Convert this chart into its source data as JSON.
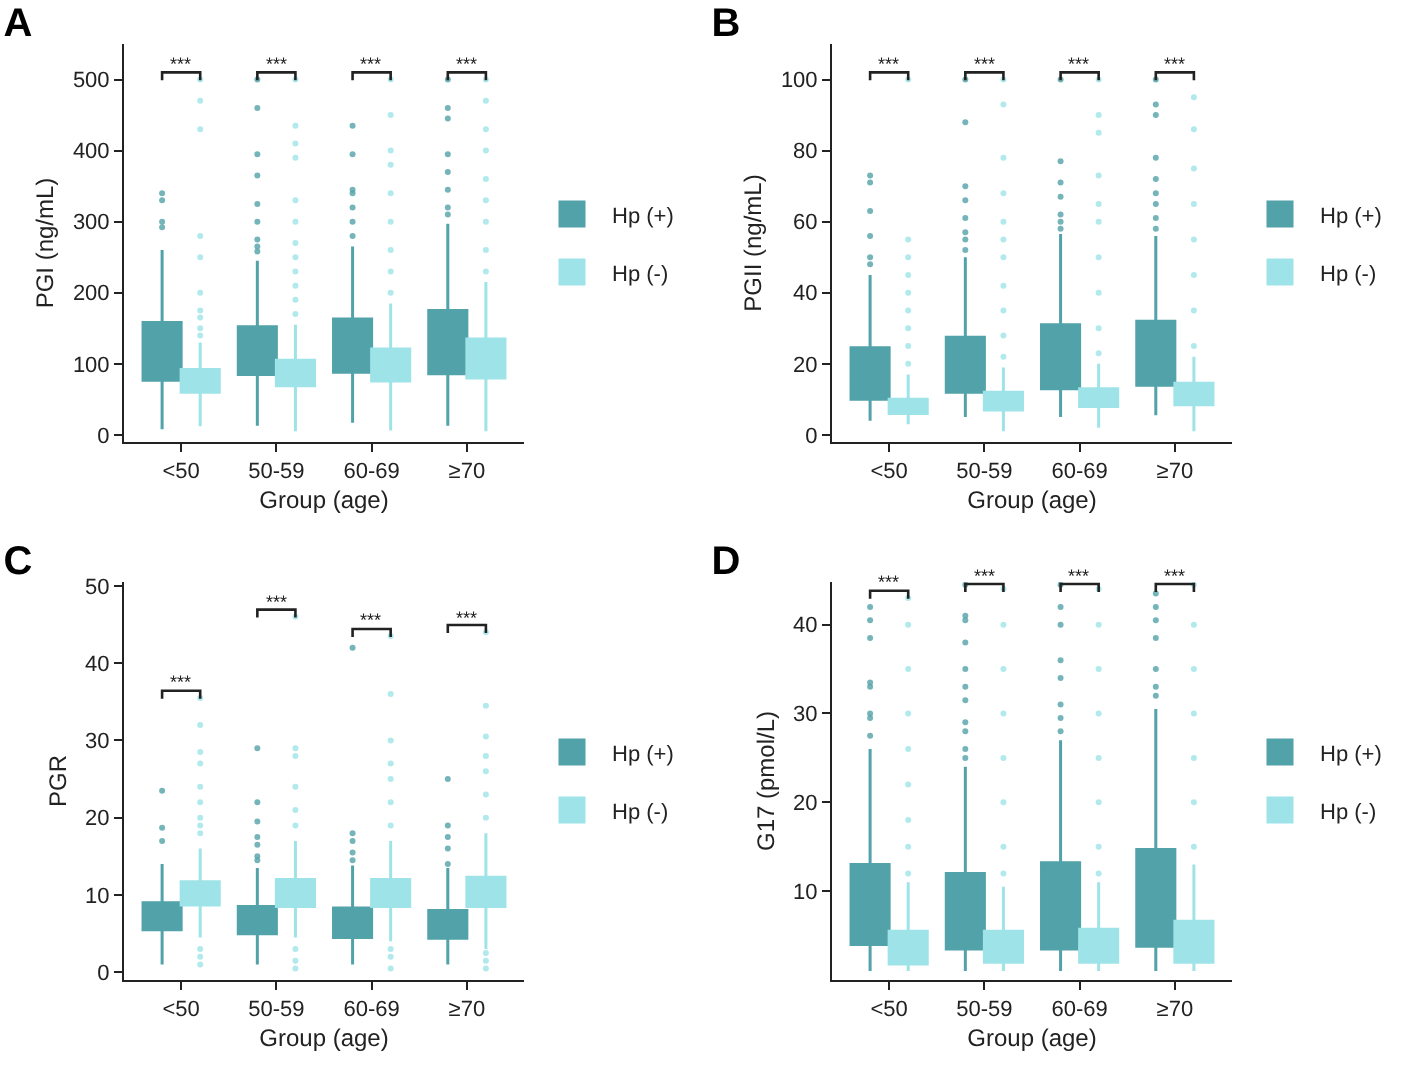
{
  "chart_data": [
    {
      "type": "box",
      "title": "A",
      "xlabel": "Group (age)",
      "ylabel": "PGI (ng/mL)",
      "categories": [
        "<50",
        "50-59",
        "60-69",
        "≥70"
      ],
      "ylim": [
        -10,
        550
      ],
      "yticks": [
        0,
        100,
        200,
        300,
        400,
        500
      ],
      "legend": "right",
      "grid": false,
      "series": [
        {
          "name": "Hp (+)",
          "color": "#52a2a9",
          "boxes": [
            {
              "low": 8,
              "q1": 77,
              "median": 105,
              "q3": 158,
              "high": 260,
              "outliers": [
                292,
                300,
                330,
                340
              ]
            },
            {
              "low": 13,
              "q1": 85,
              "median": 112,
              "q3": 152,
              "high": 245,
              "outliers": [
                258,
                265,
                275,
                300,
                325,
                365,
                395,
                460,
                500
              ]
            },
            {
              "low": 17,
              "q1": 88,
              "median": 118,
              "q3": 163,
              "high": 265,
              "outliers": [
                280,
                300,
                320,
                340,
                345,
                395,
                435
              ]
            },
            {
              "low": 13,
              "q1": 86,
              "median": 122,
              "q3": 175,
              "high": 297,
              "outliers": [
                310,
                320,
                345,
                370,
                395,
                445,
                460,
                500
              ]
            }
          ]
        },
        {
          "name": "Hp (-)",
          "color": "#9ee3e8",
          "boxes": [
            {
              "low": 12,
              "q1": 60,
              "median": 73,
              "q3": 92,
              "high": 130,
              "outliers": [
                140,
                150,
                165,
                175,
                200,
                250,
                280,
                430,
                470,
                500
              ]
            },
            {
              "low": 5,
              "q1": 69,
              "median": 84,
              "q3": 105,
              "high": 155,
              "outliers": [
                170,
                190,
                210,
                230,
                250,
                270,
                300,
                330,
                390,
                410,
                435,
                500
              ]
            },
            {
              "low": 6,
              "q1": 76,
              "median": 95,
              "q3": 121,
              "high": 185,
              "outliers": [
                200,
                230,
                260,
                300,
                340,
                380,
                400,
                450,
                500
              ]
            },
            {
              "low": 5,
              "q1": 80,
              "median": 102,
              "q3": 135,
              "high": 215,
              "outliers": [
                230,
                260,
                300,
                330,
                360,
                400,
                430,
                470,
                500
              ]
            }
          ]
        }
      ],
      "annotations": [
        "***",
        "***",
        "***",
        "***"
      ]
    },
    {
      "type": "box",
      "title": "B",
      "xlabel": "Group (age)",
      "ylabel": "PGII (ng/mL)",
      "categories": [
        "<50",
        "50-59",
        "60-69",
        "≥70"
      ],
      "ylim": [
        -2,
        110
      ],
      "yticks": [
        0,
        20,
        40,
        60,
        80,
        100
      ],
      "legend": "right",
      "grid": false,
      "series": [
        {
          "name": "Hp (+)",
          "color": "#52a2a9",
          "boxes": [
            {
              "low": 4,
              "q1": 10,
              "median": 15,
              "q3": 24.5,
              "high": 45,
              "outliers": [
                48,
                50,
                56,
                63,
                71,
                73
              ]
            },
            {
              "low": 5,
              "q1": 12,
              "median": 17,
              "q3": 27.5,
              "high": 50,
              "outliers": [
                52,
                55,
                57,
                61,
                66,
                70,
                88,
                100
              ]
            },
            {
              "low": 5,
              "q1": 13,
              "median": 19,
              "q3": 31,
              "high": 56.5,
              "outliers": [
                58,
                60,
                62,
                67,
                71,
                77,
                100
              ]
            },
            {
              "low": 5.5,
              "q1": 14,
              "median": 20,
              "q3": 32,
              "high": 56,
              "outliers": [
                58,
                61,
                65,
                68,
                72,
                78,
                90,
                93,
                100
              ]
            }
          ]
        },
        {
          "name": "Hp (-)",
          "color": "#9ee3e8",
          "boxes": [
            {
              "low": 3,
              "q1": 6,
              "median": 7.5,
              "q3": 10,
              "high": 17,
              "outliers": [
                20,
                25,
                30,
                35,
                40,
                45,
                50,
                55,
                100
              ]
            },
            {
              "low": 1,
              "q1": 7,
              "median": 9,
              "q3": 12,
              "high": 19,
              "outliers": [
                22,
                28,
                35,
                42,
                50,
                55,
                60,
                68,
                78,
                93,
                100
              ]
            },
            {
              "low": 2,
              "q1": 8,
              "median": 10,
              "q3": 13,
              "high": 20,
              "outliers": [
                23,
                30,
                40,
                50,
                60,
                65,
                73,
                85,
                90,
                100
              ]
            },
            {
              "low": 1,
              "q1": 8.5,
              "median": 11,
              "q3": 14.5,
              "high": 22,
              "outliers": [
                25,
                35,
                45,
                55,
                65,
                75,
                86,
                95
              ]
            }
          ]
        }
      ],
      "annotations": [
        "***",
        "***",
        "***",
        "***"
      ]
    },
    {
      "type": "box",
      "title": "C",
      "xlabel": "Group (age)",
      "ylabel": "PGR",
      "categories": [
        "<50",
        "50-59",
        "60-69",
        "≥70"
      ],
      "ylim": [
        -1,
        50.5
      ],
      "yticks": [
        0,
        10,
        20,
        30,
        40,
        50
      ],
      "legend": "right",
      "grid": false,
      "series": [
        {
          "name": "Hp (+)",
          "color": "#52a2a9",
          "boxes": [
            {
              "low": 1,
              "q1": 5.5,
              "median": 7,
              "q3": 9,
              "high": 14,
              "outliers": [
                17,
                18.7,
                23.5
              ]
            },
            {
              "low": 1,
              "q1": 5,
              "median": 6.5,
              "q3": 8.5,
              "high": 13.5,
              "outliers": [
                14.5,
                15,
                16.5,
                17.5,
                19.5,
                22,
                29
              ]
            },
            {
              "low": 1,
              "q1": 4.5,
              "median": 6.2,
              "q3": 8.3,
              "high": 13.8,
              "outliers": [
                14.5,
                15.5,
                17,
                18,
                42
              ]
            },
            {
              "low": 1,
              "q1": 4.4,
              "median": 6,
              "q3": 8,
              "high": 13.5,
              "outliers": [
                14,
                16,
                17.5,
                19,
                25
              ]
            }
          ]
        },
        {
          "name": "Hp (-)",
          "color": "#9ee3e8",
          "boxes": [
            {
              "low": 4.5,
              "q1": 8.7,
              "median": 10,
              "q3": 11.7,
              "high": 16,
              "outliers": [
                1,
                2,
                3,
                18,
                19,
                20,
                22,
                24,
                27,
                28.5,
                32,
                35.5
              ]
            },
            {
              "low": 4.5,
              "q1": 8.5,
              "median": 10,
              "q3": 12,
              "high": 17,
              "outliers": [
                0.5,
                1.5,
                3,
                19,
                21,
                24,
                28,
                29,
                46
              ]
            },
            {
              "low": 4,
              "q1": 8.5,
              "median": 10,
              "q3": 12,
              "high": 17,
              "outliers": [
                0.5,
                2,
                3,
                19,
                22,
                25,
                27,
                30,
                36,
                43.5
              ]
            },
            {
              "low": 3,
              "q1": 8.5,
              "median": 10.2,
              "q3": 12.3,
              "high": 18,
              "outliers": [
                0.5,
                1.5,
                2.5,
                20,
                23,
                26,
                28,
                30.5,
                34.5,
                44
              ]
            }
          ]
        }
      ],
      "annotations": [
        "***",
        "***",
        "***",
        "***"
      ]
    },
    {
      "type": "box",
      "title": "D",
      "xlabel": "Group (age)",
      "ylabel": "G17 (pmol/L)",
      "categories": [
        "<50",
        "50-59",
        "60-69",
        "≥70"
      ],
      "ylim": [
        0,
        44.8
      ],
      "yticks": [
        10,
        20,
        30,
        40
      ],
      "legend": "right",
      "grid": false,
      "series": [
        {
          "name": "Hp (+)",
          "color": "#52a2a9",
          "boxes": [
            {
              "low": 1,
              "q1": 4,
              "median": 7,
              "q3": 13,
              "high": 26,
              "outliers": [
                27.5,
                29.5,
                30,
                33,
                33.5,
                38.5,
                40.5,
                42
              ]
            },
            {
              "low": 1,
              "q1": 3.5,
              "median": 6.5,
              "q3": 12,
              "high": 24,
              "outliers": [
                25,
                26,
                28,
                29,
                31.5,
                33,
                35,
                38,
                40.5,
                41,
                44.5
              ]
            },
            {
              "low": 1,
              "q1": 3.5,
              "median": 7,
              "q3": 13.2,
              "high": 27,
              "outliers": [
                28,
                29.5,
                31,
                34,
                36,
                40,
                42,
                44.5
              ]
            },
            {
              "low": 1,
              "q1": 3.8,
              "median": 7.5,
              "q3": 14.7,
              "high": 30.5,
              "outliers": [
                32,
                33,
                35,
                38.5,
                40.5,
                42,
                43.5
              ]
            }
          ]
        },
        {
          "name": "Hp (-)",
          "color": "#9ee3e8",
          "boxes": [
            {
              "low": 1,
              "q1": 1.8,
              "median": 3,
              "q3": 5.5,
              "high": 11,
              "outliers": [
                12,
                15,
                18,
                22,
                26,
                30,
                35,
                40,
                43
              ]
            },
            {
              "low": 1,
              "q1": 2,
              "median": 3.2,
              "q3": 5.5,
              "high": 10.5,
              "outliers": [
                12,
                15,
                20,
                25,
                30,
                35,
                40,
                44
              ]
            },
            {
              "low": 1,
              "q1": 2,
              "median": 3.3,
              "q3": 5.7,
              "high": 11,
              "outliers": [
                12,
                15,
                20,
                25,
                30,
                35,
                40,
                44
              ]
            },
            {
              "low": 1,
              "q1": 2,
              "median": 3.6,
              "q3": 6.6,
              "high": 13,
              "outliers": [
                15,
                20,
                25,
                30,
                35,
                40,
                44.5
              ]
            }
          ]
        }
      ],
      "annotations": [
        "***",
        "***",
        "***",
        "***"
      ]
    }
  ]
}
